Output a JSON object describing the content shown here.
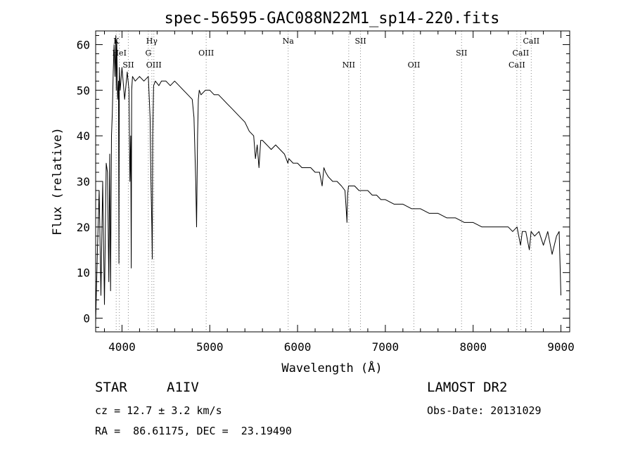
{
  "chart_data": {
    "type": "line",
    "title": "spec-56595-GAC088N22M1_sp14-220.fits",
    "xlabel": "Wavelength (Å)",
    "ylabel": "Flux (relative)",
    "xlim": [
      3700,
      9100
    ],
    "ylim": [
      -3,
      63
    ],
    "x_ticks": [
      4000,
      5000,
      6000,
      7000,
      8000,
      9000
    ],
    "y_ticks": [
      0,
      10,
      20,
      30,
      40,
      50,
      60
    ],
    "grid": false,
    "line_color": "#000000",
    "marker_color": "#888888",
    "series": [
      {
        "x": [
          3700,
          3720,
          3740,
          3760,
          3780,
          3800,
          3820,
          3835,
          3850,
          3860,
          3870,
          3880,
          3890,
          3900,
          3910,
          3920,
          3930,
          3935,
          3940,
          3950,
          3960,
          3965,
          3970,
          3980,
          4000,
          4030,
          4060,
          4080,
          4090,
          4100,
          4105,
          4110,
          4120,
          4150,
          4200,
          4250,
          4300,
          4320,
          4330,
          4340,
          4345,
          4350,
          4360,
          4380,
          4420,
          4450,
          4500,
          4550,
          4600,
          4650,
          4700,
          4750,
          4800,
          4820,
          4840,
          4850,
          4861,
          4870,
          4880,
          4900,
          4950,
          5000,
          5050,
          5100,
          5150,
          5200,
          5250,
          5300,
          5350,
          5400,
          5450,
          5500,
          5520,
          5540,
          5560,
          5580,
          5600,
          5650,
          5700,
          5750,
          5800,
          5850,
          5890,
          5900,
          5950,
          6000,
          6050,
          6100,
          6150,
          6200,
          6250,
          6280,
          6300,
          6320,
          6350,
          6400,
          6450,
          6500,
          6540,
          6560,
          6563,
          6570,
          6580,
          6600,
          6650,
          6700,
          6750,
          6800,
          6850,
          6900,
          6950,
          7000,
          7100,
          7200,
          7300,
          7400,
          7500,
          7600,
          7700,
          7800,
          7900,
          8000,
          8100,
          8200,
          8300,
          8400,
          8450,
          8500,
          8540,
          8560,
          8600,
          8640,
          8660,
          8700,
          8750,
          8800,
          8850,
          8900,
          8950,
          8980,
          9000
        ],
        "y": [
          -1,
          15,
          28,
          5,
          30,
          3,
          34,
          32,
          8,
          36,
          6,
          40,
          45,
          54,
          60,
          53,
          62,
          50,
          61,
          48,
          52,
          12,
          55,
          50,
          55,
          48,
          54,
          50,
          30,
          40,
          11,
          50,
          53,
          52,
          53,
          52,
          53,
          44,
          30,
          20,
          13,
          40,
          51,
          52,
          51,
          52,
          52,
          51,
          52,
          51,
          50,
          49,
          48,
          44,
          30,
          20,
          40,
          48,
          50,
          49,
          50,
          50,
          49,
          49,
          48,
          47,
          46,
          45,
          44,
          43,
          41,
          40,
          35,
          38,
          33,
          39,
          39,
          38,
          37,
          38,
          37,
          36,
          34,
          35,
          34,
          34,
          33,
          33,
          33,
          32,
          32,
          29,
          33,
          32,
          31,
          30,
          30,
          29,
          28,
          22,
          21,
          27,
          29,
          29,
          29,
          28,
          28,
          28,
          27,
          27,
          26,
          26,
          25,
          25,
          24,
          24,
          23,
          23,
          22,
          22,
          21,
          21,
          20,
          20,
          20,
          20,
          19,
          20,
          16,
          19,
          19,
          15,
          19,
          18,
          19,
          16,
          19,
          14,
          18,
          19,
          5
        ]
      }
    ],
    "line_markers": [
      {
        "wavelength": 3934,
        "label": "K",
        "row": 1
      },
      {
        "wavelength": 3970,
        "label": "HeI",
        "row": 2
      },
      {
        "wavelength": 4072,
        "label": "SII",
        "row": 3
      },
      {
        "wavelength": 4300,
        "label": "G",
        "row": 2
      },
      {
        "wavelength": 4340,
        "label": "Hγ",
        "row": 1
      },
      {
        "wavelength": 4363,
        "label": "OIII",
        "row": 3
      },
      {
        "wavelength": 4959,
        "label": "OIII",
        "row": 2
      },
      {
        "wavelength": 5893,
        "label": "Na",
        "row": 1
      },
      {
        "wavelength": 6583,
        "label": "NII",
        "row": 3
      },
      {
        "wavelength": 6717,
        "label": "SII",
        "row": 1
      },
      {
        "wavelength": 7325,
        "label": "OII",
        "row": 3
      },
      {
        "wavelength": 7868,
        "label": "SII",
        "row": 2
      },
      {
        "wavelength": 8498,
        "label": "CaII",
        "row": 3
      },
      {
        "wavelength": 8542,
        "label": "CaII",
        "row": 2
      },
      {
        "wavelength": 8662,
        "label": "CaII",
        "row": 1
      }
    ]
  },
  "info": {
    "object_class": "STAR",
    "subclass": "A1IV",
    "survey": "LAMOST DR2",
    "redshift": "cz = 12.7 ± 3.2 km/s",
    "obs_date": "Obs-Date: 20131029",
    "coords": "RA =  86.61175, DEC =  23.19490"
  }
}
